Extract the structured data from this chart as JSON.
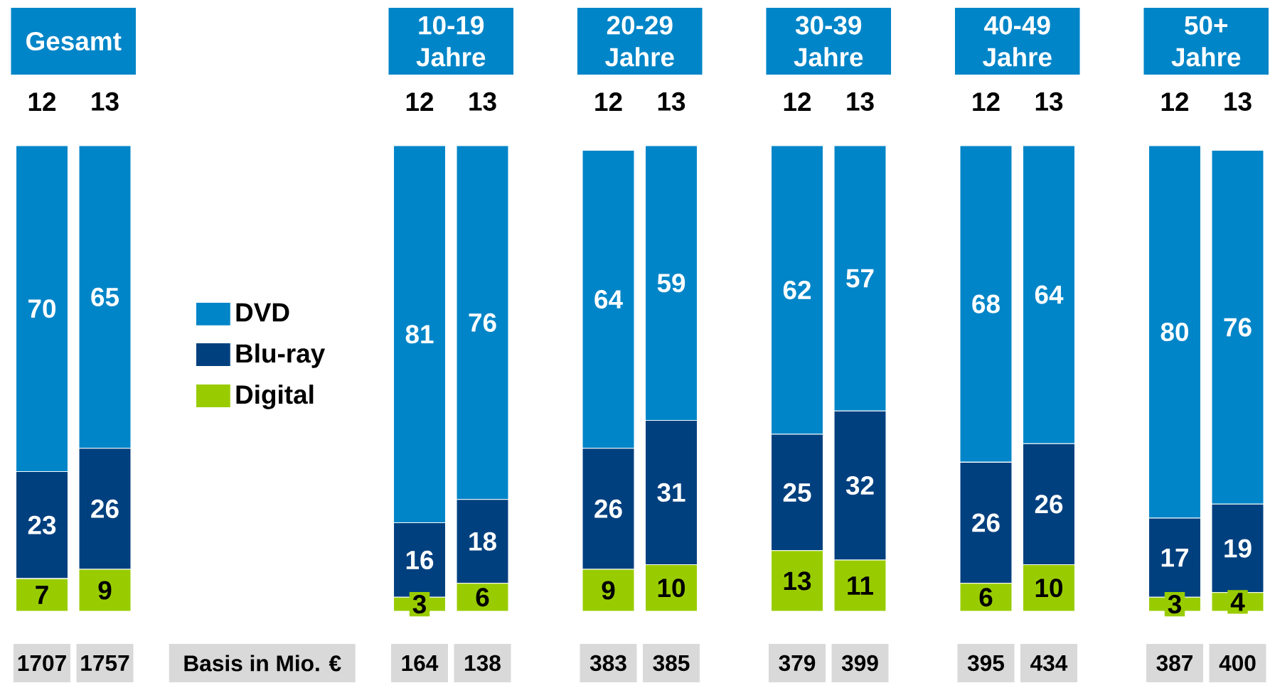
{
  "chart_data": {
    "type": "bar",
    "stacked": true,
    "data_labels": true,
    "legend": "left",
    "categories": [
      "12",
      "13",
      null,
      null,
      null,
      null,
      "12",
      "13",
      null,
      "12",
      "13",
      null,
      "12",
      "13",
      null,
      "12",
      "13",
      null,
      "12",
      "13"
    ],
    "series": [
      {
        "name": "Digital",
        "color": "#99cc00",
        "values": [
          7,
          9,
          null,
          null,
          null,
          null,
          3,
          6,
          null,
          9,
          10,
          null,
          13,
          11,
          null,
          6,
          10,
          null,
          3,
          4
        ]
      },
      {
        "name": "Blu-ray",
        "color": "#00407f",
        "values": [
          23,
          26,
          null,
          null,
          null,
          null,
          16,
          18,
          null,
          26,
          31,
          null,
          25,
          32,
          null,
          26,
          26,
          null,
          17,
          19
        ]
      },
      {
        "name": "DVD",
        "color": "#0085c8",
        "values": [
          70,
          65,
          null,
          null,
          null,
          null,
          81,
          76,
          null,
          64,
          59,
          null,
          62,
          57,
          null,
          68,
          64,
          null,
          80,
          76
        ]
      }
    ],
    "annotations": [
      "Gesamt",
      "10-19 Jahre",
      "20-29 Jahre",
      "30-39 Jahre",
      "40-49 Jahre",
      "50+ Jahre",
      "Basis in Mio. €",
      "1707",
      "1757",
      "164",
      "138",
      "383",
      "385",
      "379",
      "399",
      "395",
      "434",
      "387",
      "400"
    ]
  }
}
